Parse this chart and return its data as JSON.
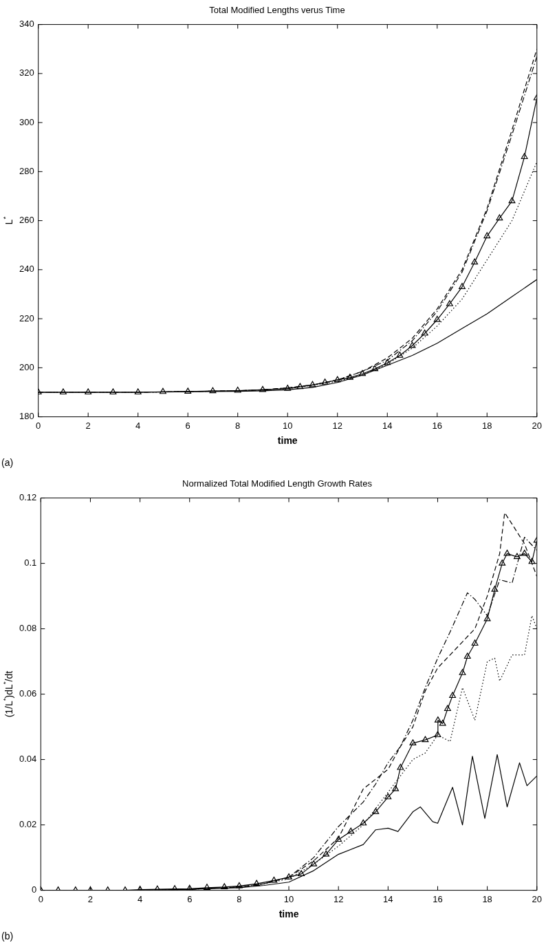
{
  "chart_data": [
    {
      "type": "line",
      "title": "Total Modified Lengths verus Time",
      "xlabel": "time",
      "ylabel": "L$^{*}$",
      "annotations": [
        "(a)"
      ],
      "xlim": [
        0,
        20
      ],
      "ylim": [
        180,
        340
      ],
      "xticks": [
        0,
        2,
        4,
        6,
        8,
        10,
        12,
        14,
        16,
        18,
        20
      ],
      "yticks": [
        180,
        200,
        220,
        240,
        260,
        280,
        300,
        320,
        340
      ],
      "grid": false,
      "legend": false,
      "series": [
        {
          "color": "#000000",
          "line_style": "solid",
          "marker": "none",
          "x": [
            0,
            2,
            4,
            6,
            8,
            9,
            10,
            11,
            12,
            13,
            14,
            15,
            16,
            17,
            18,
            19,
            20
          ],
          "values": [
            190,
            190,
            190,
            190.2,
            190.4,
            190.6,
            191,
            192,
            194,
            197,
            201,
            205,
            210,
            216,
            222,
            229,
            236
          ]
        },
        {
          "color": "#000000",
          "line_style": "dashed",
          "marker": "none",
          "x": [
            0,
            2,
            4,
            6,
            8,
            9,
            10,
            11,
            12,
            13,
            14,
            15,
            16,
            17,
            18,
            19,
            20
          ],
          "values": [
            190,
            190,
            190,
            190.3,
            190.6,
            191,
            191.8,
            193,
            195,
            198.5,
            204,
            212,
            224,
            240,
            265,
            297,
            330
          ]
        },
        {
          "color": "#000000",
          "line_style": "dotted",
          "marker": "none",
          "x": [
            0,
            2,
            4,
            6,
            8,
            9,
            10,
            11,
            12,
            13,
            14,
            15,
            16,
            17,
            18,
            19,
            20
          ],
          "values": [
            190,
            190,
            190,
            190.3,
            190.6,
            191,
            191.5,
            192.8,
            194.5,
            197,
            201.5,
            208,
            217,
            228,
            244,
            260,
            284
          ]
        },
        {
          "color": "#000000",
          "line_style": "dashdot",
          "marker": "none",
          "x": [
            0,
            2,
            4,
            6,
            8,
            9,
            10,
            11,
            12,
            13,
            14,
            15,
            16,
            17,
            18,
            19,
            20
          ],
          "values": [
            190,
            190,
            190,
            190.3,
            190.6,
            191,
            191.8,
            193,
            195,
            198.5,
            203,
            211,
            223,
            239,
            264,
            295,
            327
          ]
        },
        {
          "color": "#000000",
          "line_style": "solid",
          "marker": "triangle",
          "x": [
            0,
            1,
            2,
            3,
            4,
            5,
            6,
            7,
            8,
            9,
            10,
            10.5,
            11,
            11.5,
            12,
            12.5,
            13,
            13.5,
            14,
            14.5,
            15,
            15.5,
            16,
            16.5,
            17,
            17.5,
            18,
            18.5,
            19,
            19.5,
            20
          ],
          "values": [
            190,
            190,
            190,
            190,
            190,
            190.2,
            190.3,
            190.5,
            190.7,
            191,
            191.5,
            192.2,
            193,
            194,
            195,
            196,
            197.5,
            199.5,
            202,
            205,
            209,
            214,
            219.6,
            226,
            233,
            243,
            253.7,
            261,
            268,
            286,
            310
          ]
        }
      ]
    },
    {
      "type": "line",
      "title": "Normalized Total Modified Length Growth Rates",
      "xlabel": "time",
      "ylabel": "(1/L$^{*}$)dL$^{*}$/dt",
      "annotations": [
        "(b)"
      ],
      "xlim": [
        0,
        20
      ],
      "ylim": [
        0,
        0.12
      ],
      "xticks": [
        0,
        2,
        4,
        6,
        8,
        10,
        12,
        14,
        16,
        18,
        20
      ],
      "yticks": [
        0,
        0.02,
        0.04,
        0.06,
        0.08,
        0.1,
        0.12
      ],
      "grid": false,
      "legend": false,
      "series": [
        {
          "color": "#000000",
          "line_style": "solid",
          "marker": "none",
          "x": [
            0,
            2,
            4,
            6,
            8,
            9,
            10,
            11,
            12,
            13,
            13.5,
            14,
            14.4,
            15,
            15.3,
            15.8,
            16,
            16.6,
            17,
            17.4,
            17.9,
            18.4,
            18.8,
            19.3,
            19.6,
            20
          ],
          "values": [
            0,
            0,
            0,
            0.0003,
            0.0008,
            0.0015,
            0.0025,
            0.006,
            0.011,
            0.014,
            0.0185,
            0.019,
            0.018,
            0.024,
            0.0255,
            0.021,
            0.0205,
            0.0315,
            0.02,
            0.041,
            0.022,
            0.0415,
            0.0255,
            0.039,
            0.032,
            0.035
          ]
        },
        {
          "color": "#000000",
          "line_style": "dashed",
          "marker": "none",
          "x": [
            0,
            2,
            4,
            6,
            8,
            9,
            10,
            11,
            12,
            13,
            14,
            14.5,
            15,
            15.5,
            16,
            16.5,
            17,
            17.5,
            18,
            18.5,
            18.7,
            19,
            19.5,
            20
          ],
          "values": [
            0,
            0,
            0,
            0.0003,
            0.001,
            0.002,
            0.004,
            0.009,
            0.016,
            0.031,
            0.037,
            0.044,
            0.05,
            0.061,
            0.068,
            0.072,
            0.076,
            0.08,
            0.09,
            0.103,
            0.1155,
            0.112,
            0.106,
            0.096
          ]
        },
        {
          "color": "#000000",
          "line_style": "dotted",
          "marker": "none",
          "x": [
            0,
            2,
            4,
            6,
            8,
            9,
            10,
            11,
            12,
            13,
            14,
            15,
            15.5,
            16,
            16.5,
            17,
            17.5,
            18,
            18.3,
            18.5,
            19,
            19.5,
            19.8,
            20
          ],
          "values": [
            0,
            0,
            0,
            0.0003,
            0.001,
            0.002,
            0.0035,
            0.008,
            0.0135,
            0.02,
            0.03,
            0.04,
            0.042,
            0.0475,
            0.0455,
            0.062,
            0.052,
            0.07,
            0.071,
            0.064,
            0.072,
            0.072,
            0.084,
            0.08
          ]
        },
        {
          "color": "#000000",
          "line_style": "dashdot",
          "marker": "none",
          "x": [
            0,
            2,
            4,
            6,
            8,
            9,
            10,
            11,
            12,
            13,
            13.5,
            14,
            14.5,
            15,
            15.5,
            16,
            16.5,
            17.2,
            17.5,
            18,
            18.5,
            19,
            19.5,
            20
          ],
          "values": [
            0,
            0,
            0,
            0.0003,
            0.001,
            0.002,
            0.004,
            0.01,
            0.0195,
            0.027,
            0.0325,
            0.039,
            0.044,
            0.052,
            0.062,
            0.071,
            0.079,
            0.091,
            0.089,
            0.084,
            0.095,
            0.094,
            0.108,
            0.104
          ]
        },
        {
          "color": "#000000",
          "line_style": "solid",
          "marker": "triangle",
          "x": [
            0,
            0.7,
            1.4,
            2,
            2.7,
            3.4,
            4,
            4.7,
            5.4,
            6,
            6.7,
            7.4,
            8,
            8.7,
            9.4,
            10,
            10.5,
            11,
            11.5,
            12,
            12.5,
            13,
            13.5,
            14,
            14.3,
            14.5,
            15,
            15.5,
            16,
            16.01,
            16.2,
            16.4,
            16.6,
            17,
            17.2,
            17.5,
            18,
            18.3,
            18.6,
            18.8,
            19.2,
            19.5,
            19.8,
            20
          ],
          "values": [
            0,
            0,
            0,
            0,
            0,
            0,
            0.0002,
            0.0003,
            0.0004,
            0.0005,
            0.0008,
            0.001,
            0.0013,
            0.002,
            0.003,
            0.004,
            0.005,
            0.008,
            0.011,
            0.0155,
            0.018,
            0.0205,
            0.024,
            0.0285,
            0.031,
            0.0375,
            0.045,
            0.046,
            0.0475,
            0.052,
            0.051,
            0.0555,
            0.0595,
            0.0665,
            0.0715,
            0.0755,
            0.083,
            0.092,
            0.1,
            0.103,
            0.102,
            0.103,
            0.1005,
            0.107
          ]
        }
      ]
    }
  ]
}
